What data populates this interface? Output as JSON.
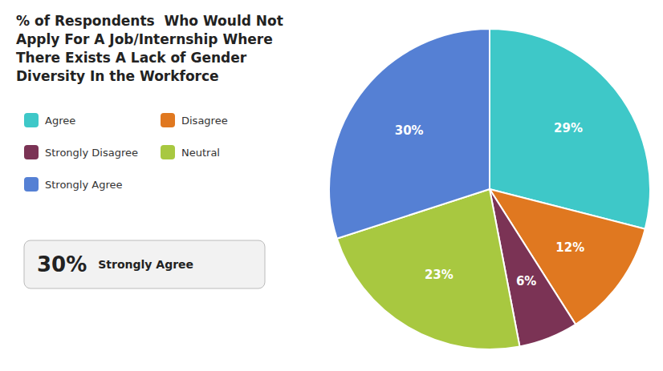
{
  "chart_data": {
    "type": "pie",
    "title": "% of Respondents  Who Would Not\nApply For A Job/Internship Where\nThere Exists A Lack of Gender\nDiversity In the Workforce",
    "categories": [
      "Agree",
      "Disagree",
      "Strongly Disagree",
      "Neutral",
      "Strongly Agree"
    ],
    "values": [
      29,
      12,
      6,
      23,
      30
    ],
    "value_labels": [
      "29%",
      "12%",
      "6%",
      "23%",
      "30%"
    ],
    "colors": [
      "#3ec8c8",
      "#e07820",
      "#7b3355",
      "#a8c840",
      "#5580d4"
    ],
    "data_labels": true,
    "legend": "left",
    "annotations": [
      {
        "text": "30%"
      },
      {
        "text": "Strongly Agree"
      }
    ]
  }
}
